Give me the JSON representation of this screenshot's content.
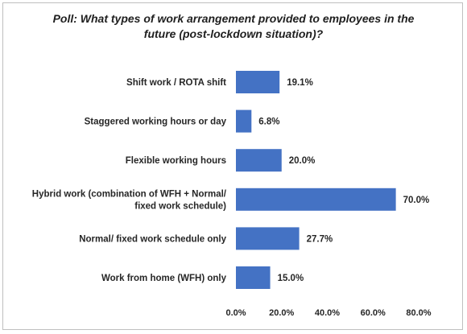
{
  "chart_data": {
    "type": "bar",
    "orientation": "horizontal",
    "title": "Poll: What types of work arrangement provided to employees in the future (post-lockdown situation)?",
    "categories": [
      "Shift work / ROTA shift",
      "Staggered working hours or day",
      "Flexible working hours",
      "Hybrid work (combination of WFH + Normal/ fixed work schedule)",
      "Normal/ fixed work schedule only",
      "Work from home (WFH) only"
    ],
    "category_lines": [
      [
        "Shift work / ROTA shift"
      ],
      [
        "Staggered working hours or day"
      ],
      [
        "Flexible working hours"
      ],
      [
        "Hybrid work (combination of WFH + Normal/",
        "fixed work schedule)"
      ],
      [
        "Normal/ fixed work schedule only"
      ],
      [
        "Work from home (WFH) only"
      ]
    ],
    "values": [
      19.1,
      6.8,
      20.0,
      70.0,
      27.7,
      15.0
    ],
    "value_labels": [
      "19.1%",
      "6.8%",
      "20.0%",
      "70.0%",
      "27.7%",
      "15.0%"
    ],
    "xlim": [
      0,
      80
    ],
    "xticks": [
      0,
      20,
      40,
      60,
      80
    ],
    "xtick_labels": [
      "0.0%",
      "20.0%",
      "40.0%",
      "60.0%",
      "80.0%"
    ],
    "grid": false,
    "bar_color": "#4472c4"
  }
}
